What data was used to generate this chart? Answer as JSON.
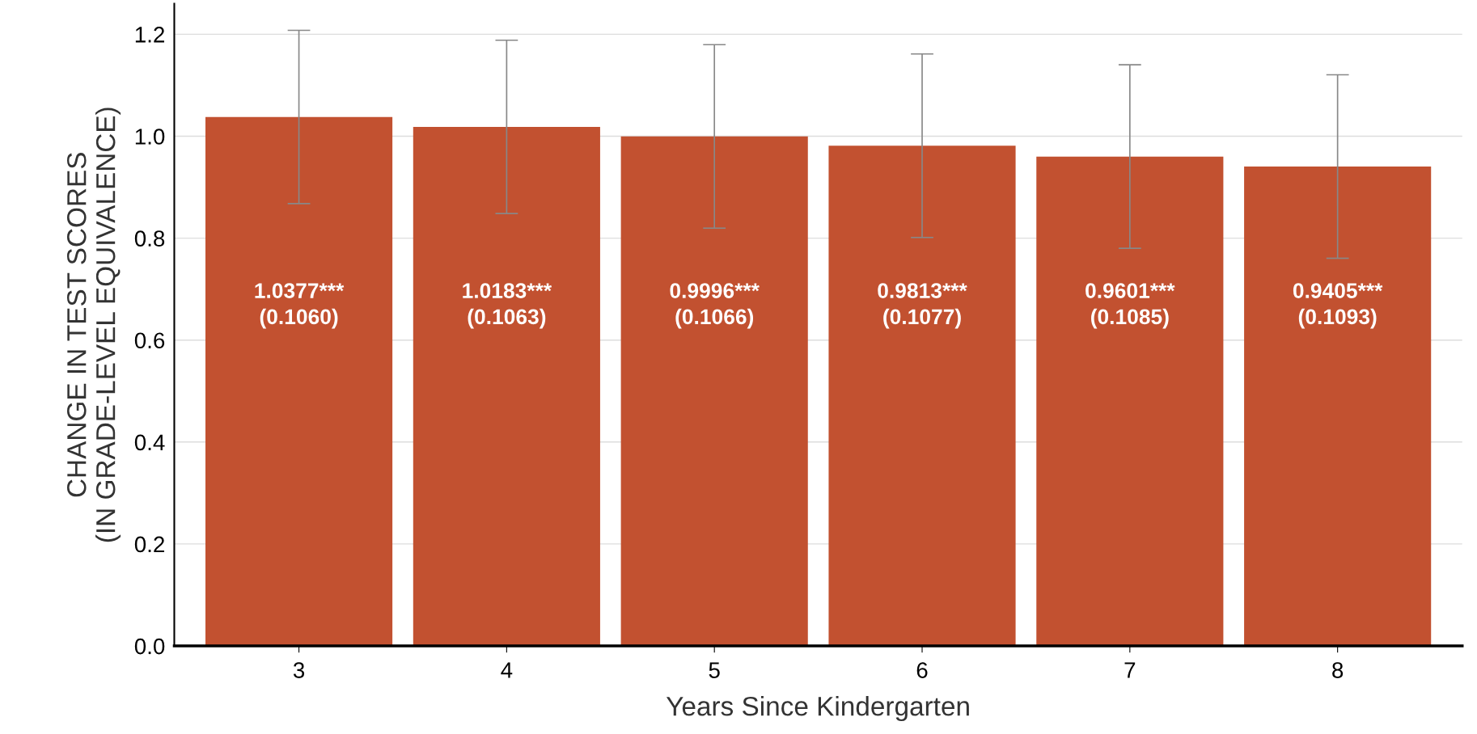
{
  "chart_data": {
    "type": "bar",
    "xlabel": "Years Since Kindergarten",
    "ylabel": "CHANGE IN TEST SCORES\n(IN GRADE-LEVEL EQUIVALENCE)",
    "categories": [
      "3",
      "4",
      "5",
      "6",
      "7",
      "8"
    ],
    "values": [
      1.0377,
      1.0183,
      0.9996,
      0.9813,
      0.9601,
      0.9405
    ],
    "errors": [
      0.17,
      0.17,
      0.18,
      0.18,
      0.18,
      0.18
    ],
    "value_labels": [
      "1.0377***\n(0.1060)",
      "1.0183***\n(0.1063)",
      "0.9996***\n(0.1066)",
      "0.9813***\n(0.1077)",
      "0.9601***\n(0.1085)",
      "0.9405***\n(0.1093)"
    ],
    "color": "#c25130",
    "ylim": [
      0,
      1.26
    ],
    "yticks": [
      {
        "value": 0,
        "label": "0.0"
      },
      0.2,
      0.4,
      0.6,
      0.8,
      {
        "value": 1,
        "label": "1.0"
      },
      1.2
    ],
    "grid": "y"
  }
}
